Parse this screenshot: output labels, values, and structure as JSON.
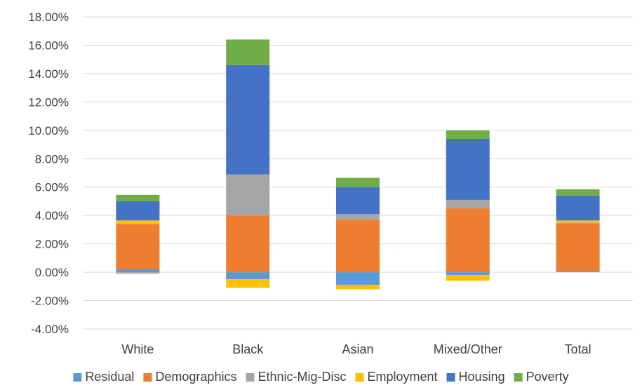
{
  "chart_data": {
    "type": "bar",
    "stacked": true,
    "categories": [
      "White",
      "Black",
      "Asian",
      "Mixed/Other",
      "Total"
    ],
    "ylim": [
      -4.0,
      18.0
    ],
    "yticks": [
      -4,
      -2,
      0,
      2,
      4,
      6,
      8,
      10,
      12,
      14,
      16,
      18
    ],
    "ytick_labels": [
      "-4.00%",
      "-2.00%",
      "0.00%",
      "2.00%",
      "4.00%",
      "6.00%",
      "8.00%",
      "10.00%",
      "12.00%",
      "14.00%",
      "16.00%",
      "18.00%"
    ],
    "grid": true,
    "legend_position": "bottom",
    "series": [
      {
        "name": "Residual",
        "color": "#5B9BD5",
        "values": [
          0.2,
          -0.5,
          -0.9,
          -0.2,
          0.05
        ]
      },
      {
        "name": "Demographics",
        "color": "#ED7D31",
        "values": [
          3.2,
          4.0,
          3.7,
          4.5,
          3.4
        ]
      },
      {
        "name": "Ethnic-Mig-Disc",
        "color": "#A5A5A5",
        "values": [
          -0.1,
          2.9,
          0.4,
          0.6,
          0.05
        ]
      },
      {
        "name": "Employment",
        "color": "#FFC000",
        "values": [
          0.25,
          -0.6,
          -0.3,
          -0.4,
          0.15
        ]
      },
      {
        "name": "Housing",
        "color": "#4472C4",
        "values": [
          1.35,
          7.7,
          1.9,
          4.3,
          1.75
        ]
      },
      {
        "name": "Poverty",
        "color": "#70AD47",
        "values": [
          0.45,
          1.8,
          0.65,
          0.6,
          0.45
        ]
      }
    ]
  }
}
